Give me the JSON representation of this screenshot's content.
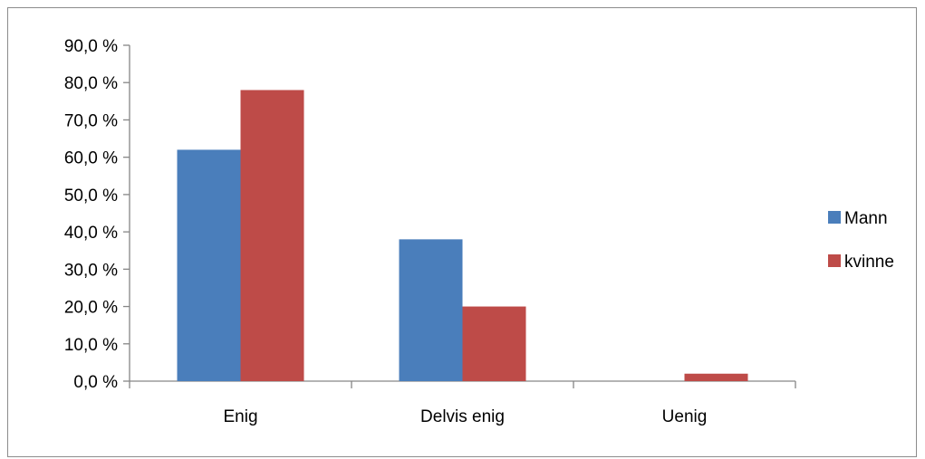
{
  "chart_data": {
    "type": "bar",
    "categories": [
      "Enig",
      "Delvis enig",
      "Uenig"
    ],
    "series": [
      {
        "name": "Mann",
        "values": [
          62.0,
          38.0,
          0.0
        ],
        "color": "#4a7ebb"
      },
      {
        "name": "kvinne",
        "values": [
          78.0,
          20.0,
          2.0
        ],
        "color": "#be4b48"
      }
    ],
    "y_ticks": [
      "0,0 %",
      "10,0 %",
      "20,0 %",
      "30,0 %",
      "40,0 %",
      "50,0 %",
      "60,0 %",
      "70,0 %",
      "80,0 %",
      "90,0 %"
    ],
    "ylim": [
      0,
      90
    ],
    "y_step": 10,
    "grid": false,
    "legend_position": "right",
    "axis_color": "#868686"
  }
}
